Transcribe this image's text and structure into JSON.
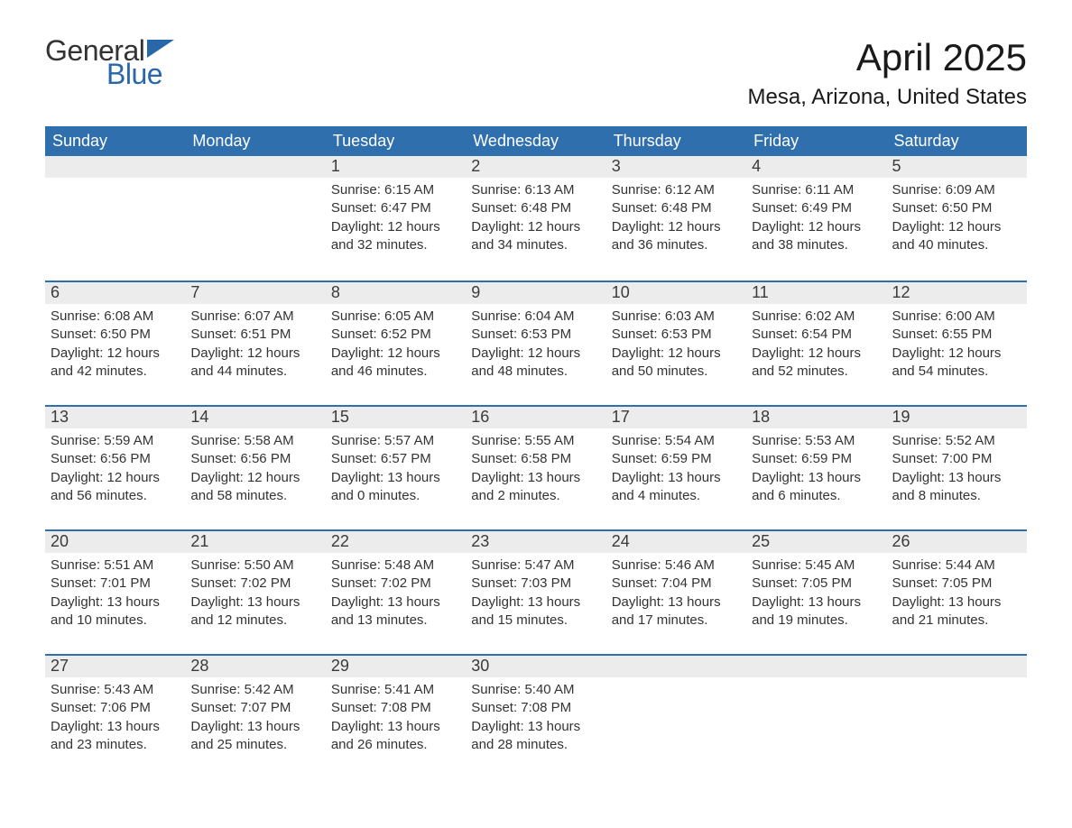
{
  "brand": {
    "word1": "General",
    "word2": "Blue",
    "word1_color": "#333333",
    "word2_color": "#2968a8",
    "flag_color": "#2968a8"
  },
  "title": "April 2025",
  "location": "Mesa, Arizona, United States",
  "header_bg": "#2f6fae",
  "header_text_color": "#ffffff",
  "daynum_bg": "#ececec",
  "week_border_color": "#2f6fae",
  "body_text_color": "#333333",
  "weekdays": [
    "Sunday",
    "Monday",
    "Tuesday",
    "Wednesday",
    "Thursday",
    "Friday",
    "Saturday"
  ],
  "weeks": [
    [
      null,
      null,
      {
        "n": "1",
        "sunrise": "Sunrise: 6:15 AM",
        "sunset": "Sunset: 6:47 PM",
        "daylight": "Daylight: 12 hours and 32 minutes."
      },
      {
        "n": "2",
        "sunrise": "Sunrise: 6:13 AM",
        "sunset": "Sunset: 6:48 PM",
        "daylight": "Daylight: 12 hours and 34 minutes."
      },
      {
        "n": "3",
        "sunrise": "Sunrise: 6:12 AM",
        "sunset": "Sunset: 6:48 PM",
        "daylight": "Daylight: 12 hours and 36 minutes."
      },
      {
        "n": "4",
        "sunrise": "Sunrise: 6:11 AM",
        "sunset": "Sunset: 6:49 PM",
        "daylight": "Daylight: 12 hours and 38 minutes."
      },
      {
        "n": "5",
        "sunrise": "Sunrise: 6:09 AM",
        "sunset": "Sunset: 6:50 PM",
        "daylight": "Daylight: 12 hours and 40 minutes."
      }
    ],
    [
      {
        "n": "6",
        "sunrise": "Sunrise: 6:08 AM",
        "sunset": "Sunset: 6:50 PM",
        "daylight": "Daylight: 12 hours and 42 minutes."
      },
      {
        "n": "7",
        "sunrise": "Sunrise: 6:07 AM",
        "sunset": "Sunset: 6:51 PM",
        "daylight": "Daylight: 12 hours and 44 minutes."
      },
      {
        "n": "8",
        "sunrise": "Sunrise: 6:05 AM",
        "sunset": "Sunset: 6:52 PM",
        "daylight": "Daylight: 12 hours and 46 minutes."
      },
      {
        "n": "9",
        "sunrise": "Sunrise: 6:04 AM",
        "sunset": "Sunset: 6:53 PM",
        "daylight": "Daylight: 12 hours and 48 minutes."
      },
      {
        "n": "10",
        "sunrise": "Sunrise: 6:03 AM",
        "sunset": "Sunset: 6:53 PM",
        "daylight": "Daylight: 12 hours and 50 minutes."
      },
      {
        "n": "11",
        "sunrise": "Sunrise: 6:02 AM",
        "sunset": "Sunset: 6:54 PM",
        "daylight": "Daylight: 12 hours and 52 minutes."
      },
      {
        "n": "12",
        "sunrise": "Sunrise: 6:00 AM",
        "sunset": "Sunset: 6:55 PM",
        "daylight": "Daylight: 12 hours and 54 minutes."
      }
    ],
    [
      {
        "n": "13",
        "sunrise": "Sunrise: 5:59 AM",
        "sunset": "Sunset: 6:56 PM",
        "daylight": "Daylight: 12 hours and 56 minutes."
      },
      {
        "n": "14",
        "sunrise": "Sunrise: 5:58 AM",
        "sunset": "Sunset: 6:56 PM",
        "daylight": "Daylight: 12 hours and 58 minutes."
      },
      {
        "n": "15",
        "sunrise": "Sunrise: 5:57 AM",
        "sunset": "Sunset: 6:57 PM",
        "daylight": "Daylight: 13 hours and 0 minutes."
      },
      {
        "n": "16",
        "sunrise": "Sunrise: 5:55 AM",
        "sunset": "Sunset: 6:58 PM",
        "daylight": "Daylight: 13 hours and 2 minutes."
      },
      {
        "n": "17",
        "sunrise": "Sunrise: 5:54 AM",
        "sunset": "Sunset: 6:59 PM",
        "daylight": "Daylight: 13 hours and 4 minutes."
      },
      {
        "n": "18",
        "sunrise": "Sunrise: 5:53 AM",
        "sunset": "Sunset: 6:59 PM",
        "daylight": "Daylight: 13 hours and 6 minutes."
      },
      {
        "n": "19",
        "sunrise": "Sunrise: 5:52 AM",
        "sunset": "Sunset: 7:00 PM",
        "daylight": "Daylight: 13 hours and 8 minutes."
      }
    ],
    [
      {
        "n": "20",
        "sunrise": "Sunrise: 5:51 AM",
        "sunset": "Sunset: 7:01 PM",
        "daylight": "Daylight: 13 hours and 10 minutes."
      },
      {
        "n": "21",
        "sunrise": "Sunrise: 5:50 AM",
        "sunset": "Sunset: 7:02 PM",
        "daylight": "Daylight: 13 hours and 12 minutes."
      },
      {
        "n": "22",
        "sunrise": "Sunrise: 5:48 AM",
        "sunset": "Sunset: 7:02 PM",
        "daylight": "Daylight: 13 hours and 13 minutes."
      },
      {
        "n": "23",
        "sunrise": "Sunrise: 5:47 AM",
        "sunset": "Sunset: 7:03 PM",
        "daylight": "Daylight: 13 hours and 15 minutes."
      },
      {
        "n": "24",
        "sunrise": "Sunrise: 5:46 AM",
        "sunset": "Sunset: 7:04 PM",
        "daylight": "Daylight: 13 hours and 17 minutes."
      },
      {
        "n": "25",
        "sunrise": "Sunrise: 5:45 AM",
        "sunset": "Sunset: 7:05 PM",
        "daylight": "Daylight: 13 hours and 19 minutes."
      },
      {
        "n": "26",
        "sunrise": "Sunrise: 5:44 AM",
        "sunset": "Sunset: 7:05 PM",
        "daylight": "Daylight: 13 hours and 21 minutes."
      }
    ],
    [
      {
        "n": "27",
        "sunrise": "Sunrise: 5:43 AM",
        "sunset": "Sunset: 7:06 PM",
        "daylight": "Daylight: 13 hours and 23 minutes."
      },
      {
        "n": "28",
        "sunrise": "Sunrise: 5:42 AM",
        "sunset": "Sunset: 7:07 PM",
        "daylight": "Daylight: 13 hours and 25 minutes."
      },
      {
        "n": "29",
        "sunrise": "Sunrise: 5:41 AM",
        "sunset": "Sunset: 7:08 PM",
        "daylight": "Daylight: 13 hours and 26 minutes."
      },
      {
        "n": "30",
        "sunrise": "Sunrise: 5:40 AM",
        "sunset": "Sunset: 7:08 PM",
        "daylight": "Daylight: 13 hours and 28 minutes."
      },
      null,
      null,
      null
    ]
  ]
}
